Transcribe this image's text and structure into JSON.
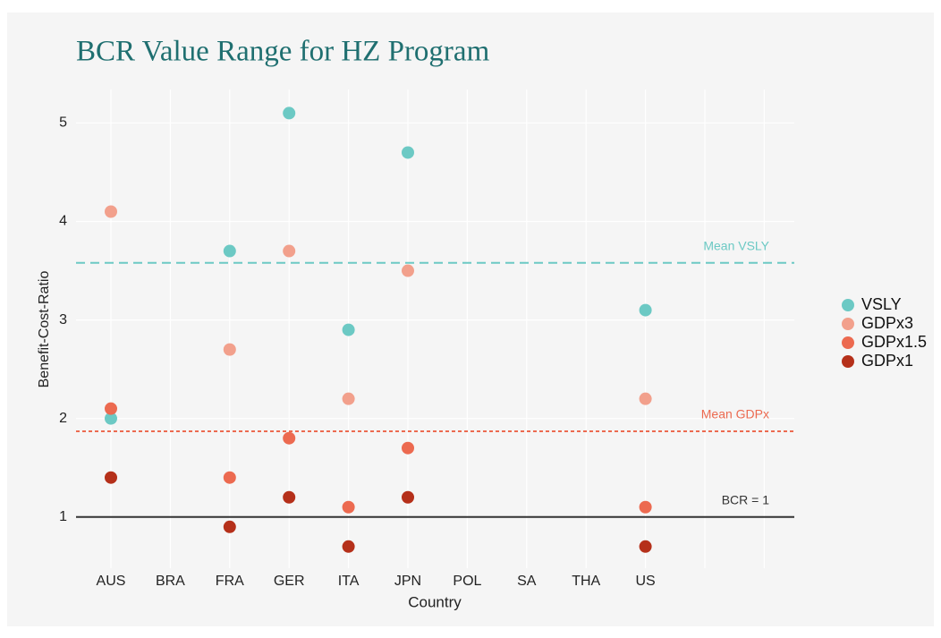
{
  "chart_data": {
    "type": "scatter",
    "title": "BCR Value Range for HZ Program",
    "x_label": "Country",
    "y_label": "Benefit-Cost-Ratio",
    "categories": [
      "AUS",
      "BRA",
      "FRA",
      "GER",
      "ITA",
      "JPN",
      "POL",
      "SA",
      "THA",
      "US"
    ],
    "series": [
      {
        "name": "VSLY",
        "color": "#6cc9c4",
        "values": [
          2.0,
          null,
          3.7,
          5.1,
          2.9,
          4.7,
          null,
          null,
          null,
          3.1
        ]
      },
      {
        "name": "GDPx3",
        "color": "#f2a08c",
        "values": [
          4.1,
          null,
          2.7,
          3.7,
          2.2,
          3.5,
          null,
          null,
          null,
          2.2
        ]
      },
      {
        "name": "GDPx1.5",
        "color": "#ec6a50",
        "values": [
          2.1,
          null,
          1.4,
          1.8,
          1.1,
          1.7,
          null,
          null,
          null,
          1.1
        ]
      },
      {
        "name": "GDPx1",
        "color": "#b5301a",
        "values": [
          1.4,
          null,
          0.9,
          1.2,
          0.7,
          1.2,
          null,
          null,
          null,
          0.7
        ]
      }
    ],
    "reference_lines": [
      {
        "label": "Mean VSLY",
        "value": 3.58,
        "color": "#6cc9c4",
        "dash": "dashed"
      },
      {
        "label": "Mean GDPx",
        "value": 1.87,
        "color": "#ec6a50",
        "dash": "dotted"
      },
      {
        "label": "BCR = 1",
        "value": 1,
        "color": "#333333",
        "dash": "solid"
      }
    ],
    "ylim": [
      0.48,
      5.34
    ],
    "yticks": [
      1,
      2,
      3,
      4,
      5
    ],
    "grid": true,
    "legend": "right"
  }
}
